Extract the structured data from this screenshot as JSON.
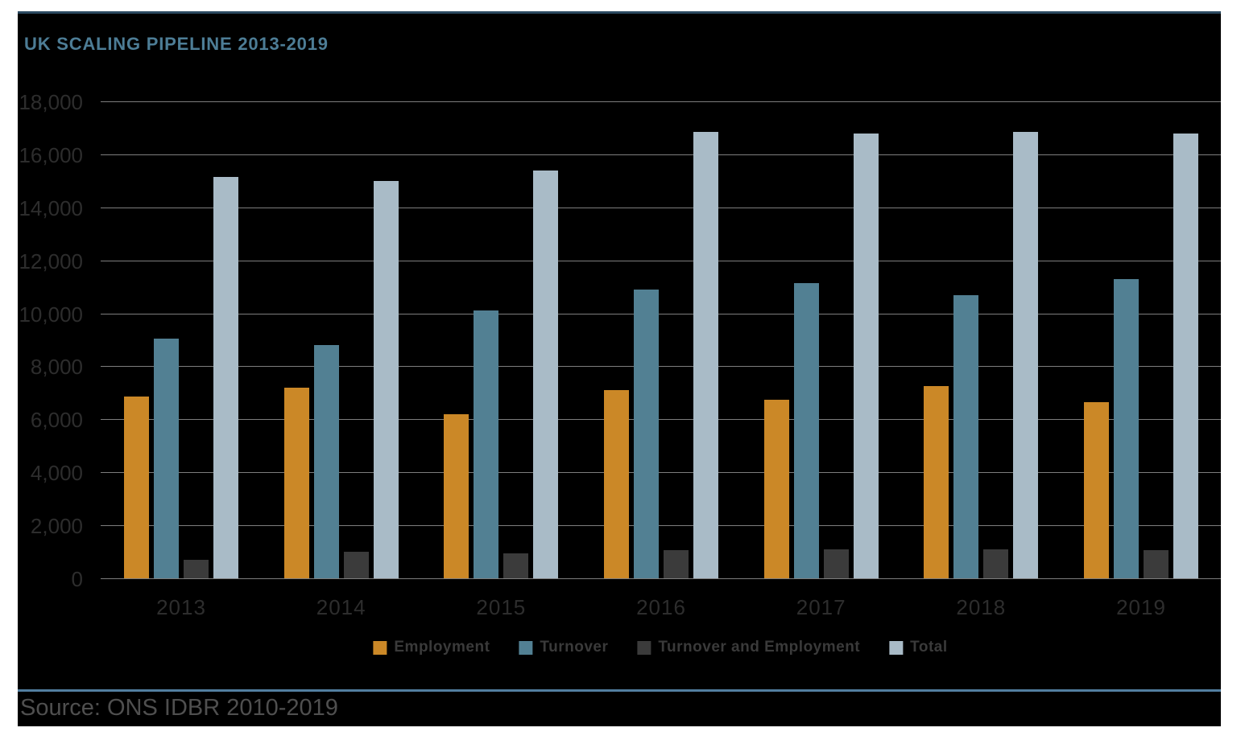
{
  "title": "UK SCALING PIPELINE 2013-2019",
  "source": "Source: ONS IDBR 2010-2019",
  "colors": {
    "employment": "#cb8827",
    "turnover": "#528093",
    "turnover_and_employment": "#3b3b3b",
    "total": "#a9bbc7",
    "title_text": "#4d7d96",
    "top_rule": "#2c4a61",
    "bottom_rule": "#527ea0",
    "gridline": "#7d7d7d",
    "axis_label": "#2d2d2d",
    "legend_label": "#3a3a3a",
    "source_text": "#4f4f4f",
    "panel_background": "#000000",
    "page_background": "#ffffff"
  },
  "chart_data": {
    "type": "bar",
    "title": "UK SCALING PIPELINE 2013-2019",
    "categories": [
      "2013",
      "2014",
      "2015",
      "2016",
      "2017",
      "2018",
      "2019"
    ],
    "series": [
      {
        "name": "Employment",
        "color_key": "employment",
        "values": [
          6850,
          7200,
          6200,
          7100,
          6750,
          7250,
          6650
        ]
      },
      {
        "name": "Turnover",
        "color_key": "turnover",
        "values": [
          9050,
          8800,
          10100,
          10900,
          11150,
          10700,
          11300
        ]
      },
      {
        "name": "Turnover and Employment",
        "color_key": "turnover_and_employment",
        "values": [
          700,
          1000,
          950,
          1050,
          1100,
          1100,
          1050
        ]
      },
      {
        "name": "Total",
        "color_key": "total",
        "values": [
          15150,
          15000,
          15400,
          16850,
          16800,
          16850,
          16800
        ]
      }
    ],
    "xlabel": "",
    "ylabel": "",
    "ylim": [
      0,
      18000
    ],
    "ytick_step": 2000,
    "ytick_labels_top_to_bottom": [
      "18,000",
      "16,000",
      "14,000",
      "12,000",
      "10,000",
      "8,000",
      "6,000",
      "4,000",
      "2,000",
      "0"
    ],
    "grid": true,
    "legend_position": "bottom"
  }
}
